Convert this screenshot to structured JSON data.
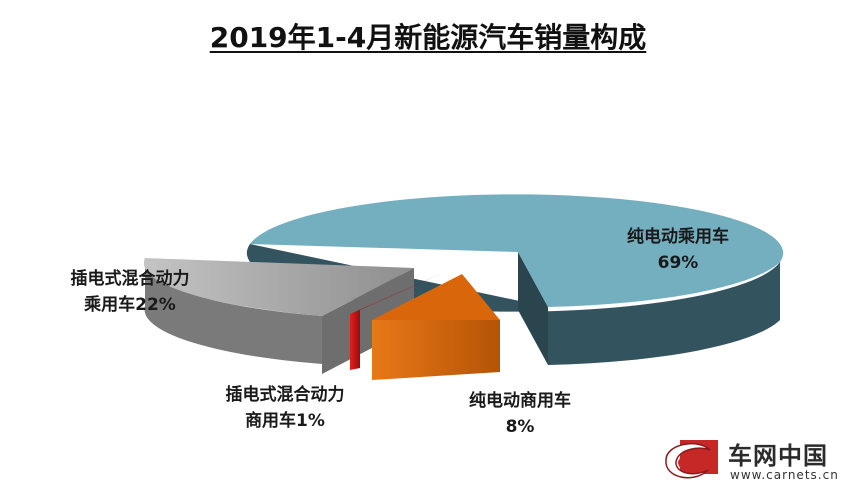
{
  "title": "2019年1-4月新能源汽车销量构成",
  "chart_data": {
    "type": "pie",
    "title": "2019年1-4月新能源汽车销量构成",
    "slices": [
      {
        "label_line1": "纯电动乘用车",
        "label_line2": "69%",
        "value": 69,
        "color": "#74afc0"
      },
      {
        "label_line1": "纯电动商用车",
        "label_line2": "8%",
        "value": 8,
        "color": "#d9660a"
      },
      {
        "label_line1": "插电式混合动力",
        "label_line2": "商用车1%",
        "value": 1,
        "color": "#cc1111"
      },
      {
        "label_line1": "插电式混合动力",
        "label_line2": "乘用车22%",
        "value": 22,
        "color": "#9e9e9e"
      }
    ]
  },
  "logo": {
    "name": "车网中国",
    "url": "www.carnets.cn"
  }
}
